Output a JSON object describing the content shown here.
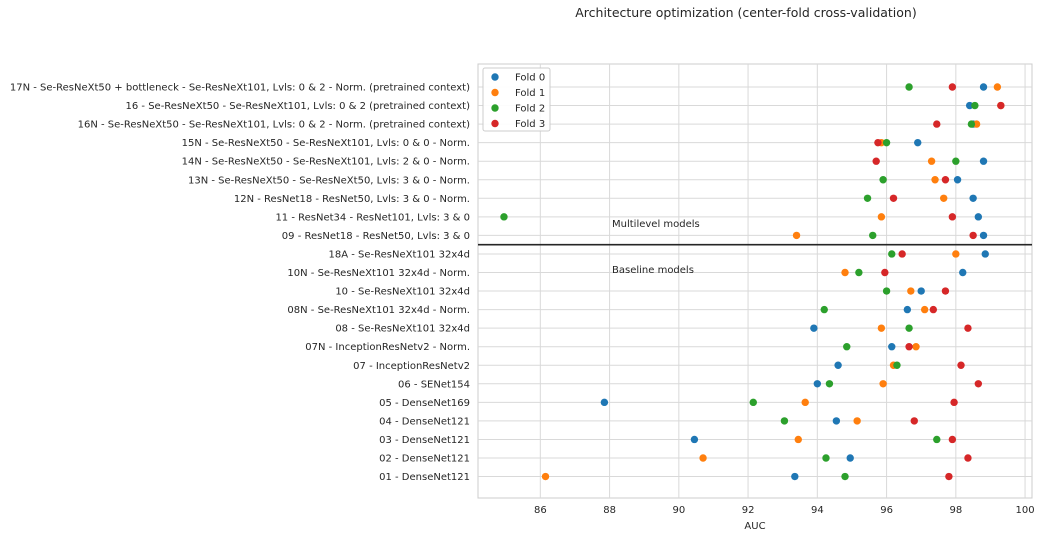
{
  "chart_data": {
    "type": "scatter",
    "title": "Architecture optimization (center-fold cross-validation)",
    "xlabel": "AUC",
    "ylabel": "",
    "xlim": [
      84.2,
      100.2
    ],
    "xticks": [
      86,
      88,
      90,
      92,
      94,
      96,
      98,
      100
    ],
    "grid": true,
    "legend": "top-left",
    "categories": [
      "17N - Se-ResNeXt50 + bottleneck - Se-ResNeXt101, Lvls: 0 & 2  - Norm. (pretrained context)",
      "16 - Se-ResNeXt50 - Se-ResNeXt101, Lvls: 0 & 2  (pretrained context)",
      "16N - Se-ResNeXt50 - Se-ResNeXt101, Lvls: 0 & 2  - Norm. (pretrained context)",
      "15N - Se-ResNeXt50 - Se-ResNeXt101, Lvls: 0 & 0  - Norm.",
      "14N - Se-ResNeXt50 - Se-ResNeXt101, Lvls: 2 & 0  - Norm.",
      "13N - Se-ResNeXt50 - Se-ResNeXt50, Lvls: 3 & 0  - Norm.",
      "12N - ResNet18 - ResNet50, Lvls: 3 & 0  - Norm.",
      "11 - ResNet34 - ResNet101, Lvls: 3 & 0",
      "09 - ResNet18 - ResNet50, Lvls: 3 & 0",
      "18A - Se-ResNeXt101 32x4d",
      "10N - Se-ResNeXt101 32x4d - Norm.",
      "10 - Se-ResNeXt101 32x4d",
      "08N - Se-ResNeXt101 32x4d - Norm.",
      "08 - Se-ResNeXt101 32x4d",
      "07N - InceptionResNetv2 - Norm.",
      "07 - InceptionResNetv2",
      "06 - SENet154",
      "05 - DenseNet169",
      "04 - DenseNet121",
      "03 - DenseNet121",
      "02 - DenseNet121",
      "01 - DenseNet121"
    ],
    "series": [
      {
        "name": "Fold 0",
        "color": "#1f77b4",
        "values": [
          98.8,
          98.4,
          98.5,
          96.9,
          98.8,
          98.05,
          98.5,
          98.65,
          98.8,
          98.85,
          98.2,
          97.0,
          96.6,
          93.9,
          96.15,
          94.6,
          94.0,
          87.85,
          94.55,
          90.45,
          94.95,
          93.35
        ]
      },
      {
        "name": "Fold 1",
        "color": "#ff7f0e",
        "values": [
          99.2,
          99.3,
          98.6,
          95.85,
          97.3,
          97.4,
          97.65,
          95.85,
          93.4,
          98.0,
          94.8,
          96.7,
          97.1,
          95.85,
          96.85,
          96.2,
          95.9,
          93.65,
          95.15,
          93.45,
          90.7,
          86.15
        ]
      },
      {
        "name": "Fold 2",
        "color": "#2ca02c",
        "values": [
          96.65,
          98.55,
          98.45,
          96.0,
          98.0,
          95.9,
          95.45,
          84.95,
          95.6,
          96.15,
          95.2,
          96.0,
          94.2,
          96.65,
          94.85,
          96.3,
          94.35,
          92.15,
          93.05,
          97.45,
          94.25,
          94.8
        ]
      },
      {
        "name": "Fold 3",
        "color": "#d62728",
        "values": [
          97.9,
          99.3,
          97.45,
          95.75,
          95.7,
          97.7,
          96.2,
          97.9,
          98.5,
          96.45,
          95.95,
          97.7,
          97.35,
          98.35,
          96.65,
          98.15,
          98.65,
          97.95,
          96.8,
          97.9,
          98.35,
          97.8
        ]
      }
    ],
    "separator_after_category": 8,
    "annotations": [
      "Multilevel models",
      "Baseline models"
    ]
  }
}
